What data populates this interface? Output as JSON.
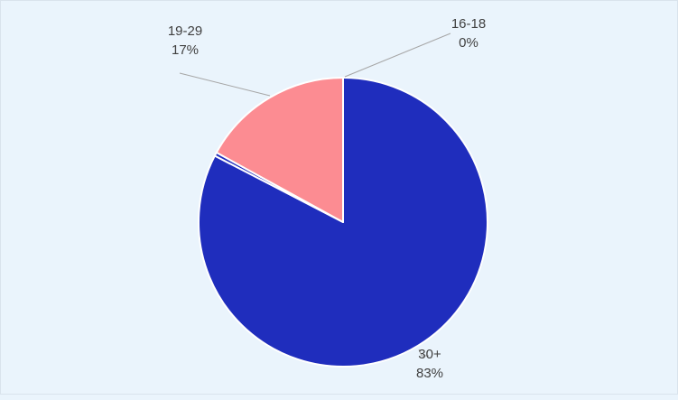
{
  "chart_data": {
    "type": "pie",
    "start_angle_deg": 0,
    "direction": "clockwise",
    "background_color": "#eaf4fc",
    "slices": [
      {
        "label": "30+",
        "value": 82.6,
        "display": "83%",
        "color": "#1f2dbd"
      },
      {
        "label": "16-18",
        "value": 0.4,
        "display": "0%",
        "color": "#1f2dbd"
      },
      {
        "label": "19-29",
        "value": 17.0,
        "display": "17%",
        "color": "#fc8c92"
      }
    ],
    "data_labels": true,
    "leader_lines": true,
    "legend": "none"
  }
}
